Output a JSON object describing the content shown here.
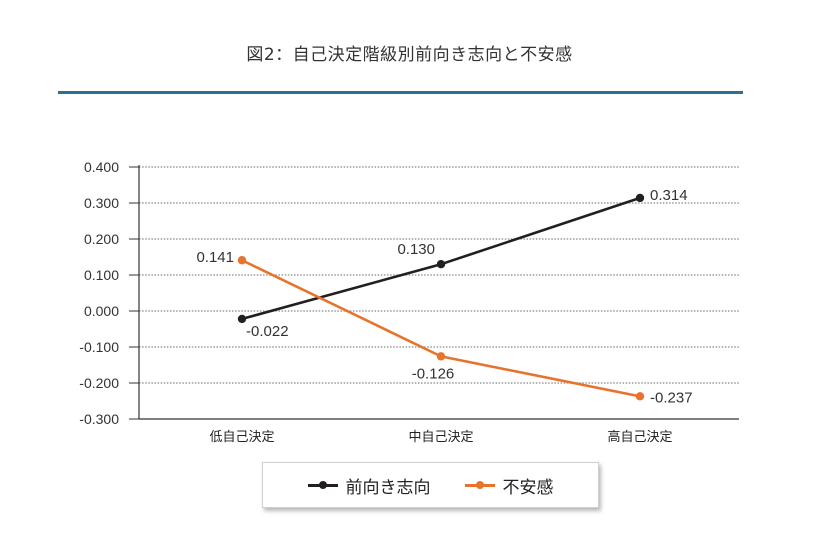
{
  "title": "図2：自己決定階級別前向き志向と不安感",
  "colors": {
    "accent_rule": "#2e6f93",
    "series_1": "#231f1f",
    "series_2": "#e8732c",
    "grid": "#9a9a9a"
  },
  "chart_data": {
    "type": "line",
    "categories": [
      "低自己決定",
      "中自己決定",
      "高自己決定"
    ],
    "series": [
      {
        "name": "前向き志向",
        "values": [
          -0.022,
          0.13,
          0.314
        ],
        "labels": [
          "-0.022",
          "0.130",
          "0.314"
        ]
      },
      {
        "name": "不安感",
        "values": [
          0.141,
          -0.126,
          -0.237
        ],
        "labels": [
          "0.141",
          "-0.126",
          "-0.237"
        ]
      }
    ],
    "ylim": [
      -0.3,
      0.4
    ],
    "yticks": [
      "0.400",
      "0.300",
      "0.200",
      "0.100",
      "0.000",
      "-0.100",
      "-0.200",
      "-0.300"
    ],
    "ytick_values": [
      0.4,
      0.3,
      0.2,
      0.1,
      0.0,
      -0.1,
      -0.2,
      -0.3
    ],
    "grid": true,
    "legend_position": "bottom"
  },
  "legend": {
    "items": [
      "前向き志向",
      "不安感"
    ]
  }
}
